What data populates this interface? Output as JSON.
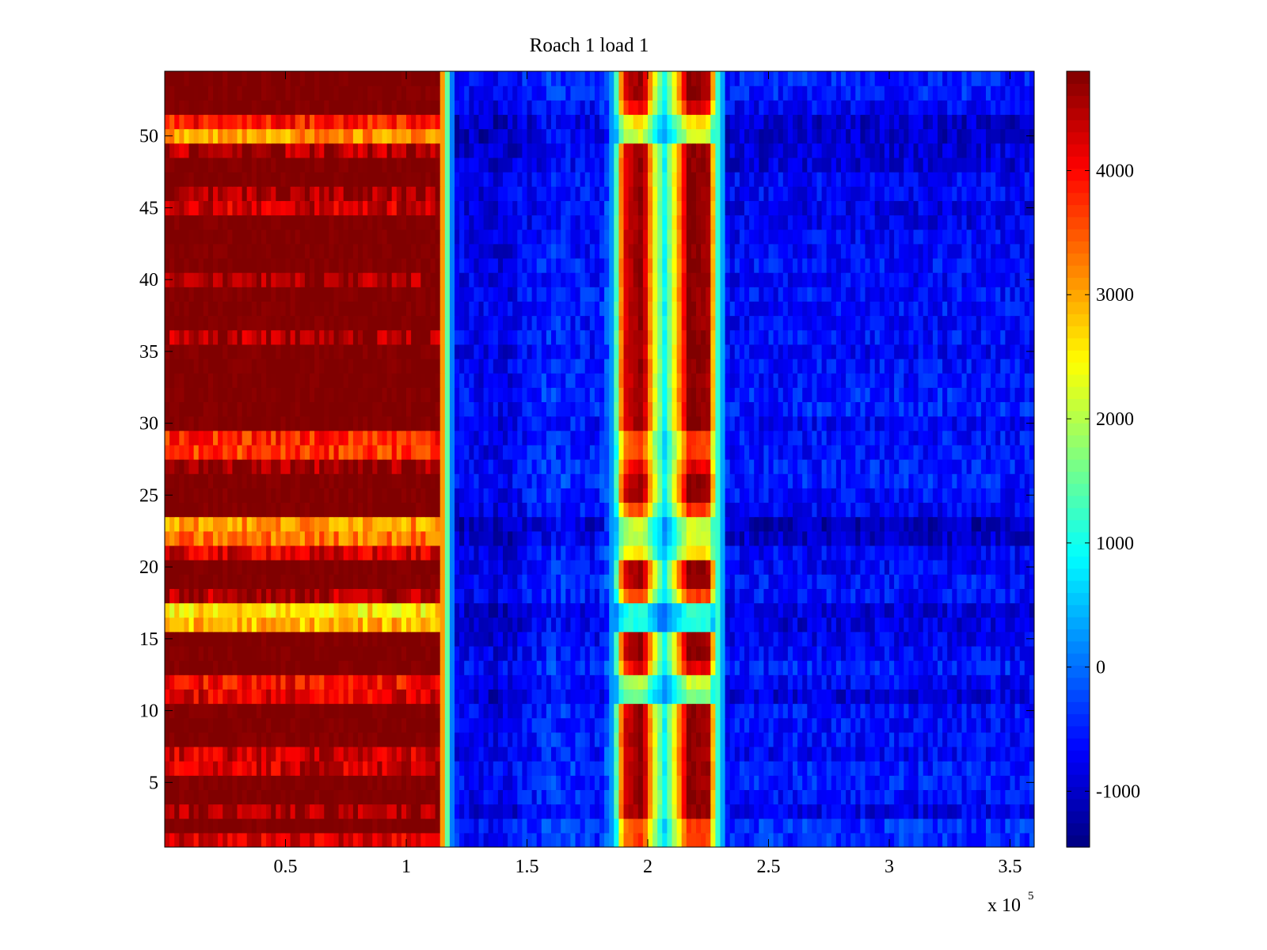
{
  "chart_data": {
    "type": "heatmap",
    "title": "Roach 1 load 1",
    "xlabel": "",
    "ylabel": "",
    "x_exponent_label": {
      "base": "x 10",
      "exponent": "5"
    },
    "x_range": [
      0,
      3.6
    ],
    "y_range": [
      0.5,
      54.5
    ],
    "x_ticks": [
      0.5,
      1,
      1.5,
      2,
      2.5,
      3,
      3.5
    ],
    "x_tick_labels": [
      "0.5",
      "1",
      "1.5",
      "2",
      "2.5",
      "3",
      "3.5"
    ],
    "y_ticks": [
      5,
      10,
      15,
      20,
      25,
      30,
      35,
      40,
      45,
      50
    ],
    "y_tick_labels": [
      "5",
      "10",
      "15",
      "20",
      "25",
      "30",
      "35",
      "40",
      "45",
      "50"
    ],
    "colormap": "jet",
    "color_range": [
      -1450,
      4800
    ],
    "colorbar_ticks": [
      -1000,
      0,
      1000,
      2000,
      3000,
      4000
    ],
    "colorbar_tick_labels": [
      "-1000",
      "0",
      "1000",
      "2000",
      "3000",
      "4000"
    ],
    "rows": 54,
    "column_profile": [
      {
        "x": 0.0,
        "value": 4800
      },
      {
        "x": 1.13,
        "value": 4800
      },
      {
        "x": 1.16,
        "value": 2200
      },
      {
        "x": 1.2,
        "value": -600
      },
      {
        "x": 1.4,
        "value": -750
      },
      {
        "x": 1.6,
        "value": -300
      },
      {
        "x": 1.8,
        "value": -500
      },
      {
        "x": 1.86,
        "value": 400
      },
      {
        "x": 1.9,
        "value": 4200
      },
      {
        "x": 1.98,
        "value": 4800
      },
      {
        "x": 2.02,
        "value": 2600
      },
      {
        "x": 2.07,
        "value": 900
      },
      {
        "x": 2.12,
        "value": 2800
      },
      {
        "x": 2.17,
        "value": 4800
      },
      {
        "x": 2.25,
        "value": 4600
      },
      {
        "x": 2.29,
        "value": 1200
      },
      {
        "x": 2.33,
        "value": -500
      },
      {
        "x": 3.6,
        "value": -550
      }
    ],
    "row_left_band_values": [
      4200,
      4800,
      4600,
      4800,
      4800,
      4300,
      4300,
      4800,
      4800,
      4800,
      4200,
      4000,
      4800,
      4800,
      4800,
      2900,
      2600,
      4500,
      4800,
      4800,
      4200,
      3300,
      3100,
      4800,
      4800,
      4800,
      4600,
      3700,
      3800,
      4800,
      4800,
      4800,
      4800,
      4800,
      4800,
      4500,
      4800,
      4800,
      4800,
      4600,
      4800,
      4800,
      4800,
      4800,
      4300,
      4600,
      4800,
      4800,
      4500,
      3100,
      3900,
      4800,
      4800,
      4800
    ],
    "row_middle_band_strength": [
      0.8,
      0.8,
      1.0,
      1.0,
      1.0,
      1.0,
      1.0,
      1.0,
      1.0,
      1.0,
      0.4,
      0.5,
      0.9,
      1.0,
      1.0,
      0.3,
      0.3,
      0.8,
      1.0,
      1.0,
      0.6,
      0.5,
      0.5,
      0.8,
      1.0,
      1.0,
      0.9,
      0.8,
      0.8,
      1.0,
      1.0,
      1.0,
      1.0,
      1.0,
      1.0,
      1.0,
      1.0,
      1.0,
      1.0,
      1.0,
      1.0,
      1.0,
      1.0,
      1.0,
      1.0,
      1.0,
      1.0,
      1.0,
      1.0,
      0.5,
      0.6,
      0.9,
      1.0,
      1.0
    ],
    "row_right_band_level": [
      -400,
      -400,
      -800,
      -600,
      -500,
      -500,
      -700,
      -600,
      -600,
      -600,
      -900,
      -700,
      -500,
      -700,
      -800,
      -900,
      -900,
      -600,
      -600,
      -700,
      -700,
      -1000,
      -1100,
      -700,
      -600,
      -500,
      -500,
      -600,
      -600,
      -700,
      -500,
      -500,
      -600,
      -600,
      -700,
      -600,
      -700,
      -600,
      -600,
      -700,
      -600,
      -700,
      -700,
      -800,
      -800,
      -700,
      -700,
      -900,
      -900,
      -1000,
      -1000,
      -700,
      -500,
      -500
    ]
  }
}
